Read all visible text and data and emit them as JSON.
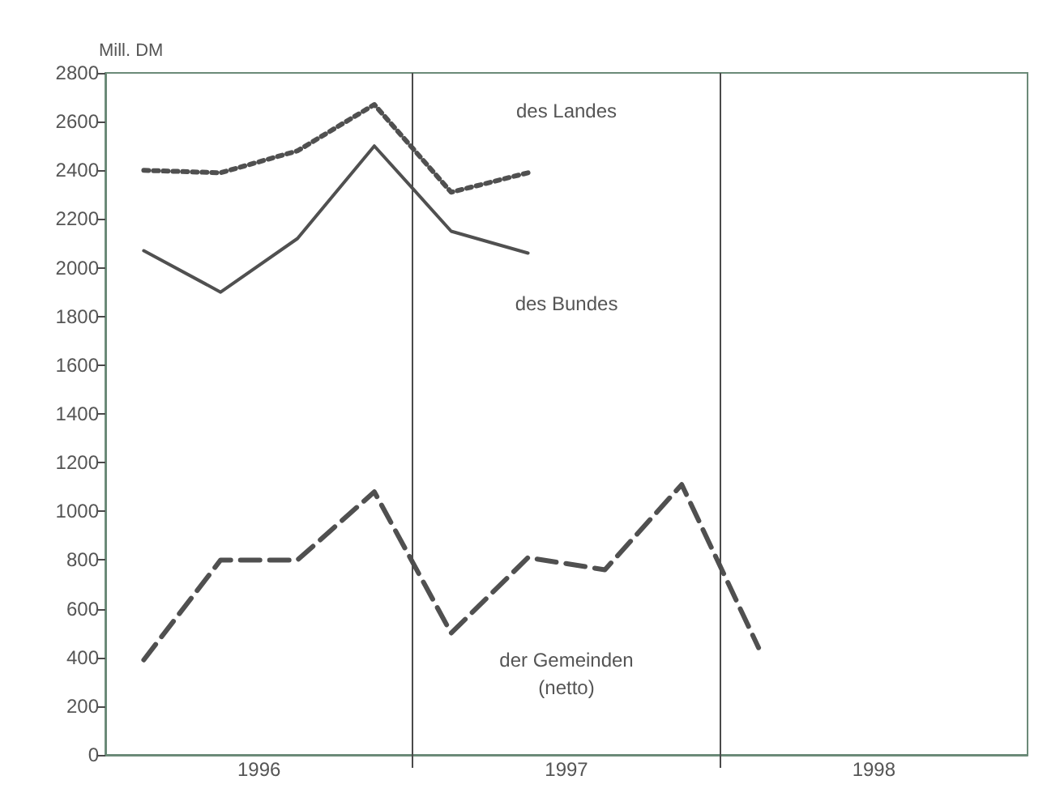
{
  "chart_data": {
    "type": "line",
    "ylabel": "Mill. DM",
    "xlim": [
      1996,
      1999
    ],
    "xticks": [
      {
        "value": 1996.5,
        "label": "1996"
      },
      {
        "value": 1997,
        "label": null
      },
      {
        "value": 1997.5,
        "label": "1997"
      },
      {
        "value": 1998,
        "label": null
      },
      {
        "value": 1998.5,
        "label": "1998"
      }
    ],
    "ylim": [
      0,
      2800
    ],
    "yticks": [
      0,
      200,
      400,
      600,
      800,
      1000,
      1200,
      1400,
      1600,
      1800,
      2000,
      2200,
      2400,
      2600,
      2800
    ],
    "grid": false,
    "legend": false,
    "marker": "none",
    "ref_lines": [
      {
        "axis": "x",
        "value": 1997,
        "color": "#4a4a4a"
      },
      {
        "axis": "x",
        "value": 1998,
        "color": "#4a4a4a"
      }
    ],
    "series": [
      {
        "name": "des Landes",
        "color": "#505050",
        "line_style": "dotted",
        "x": [
          1996.125,
          1996.375,
          1996.625,
          1996.875,
          1997.125,
          1997.375
        ],
        "values": [
          2400,
          2390,
          2480,
          2670,
          2310,
          2390
        ]
      },
      {
        "name": "des Bundes",
        "color": "#505050",
        "line_style": "solid",
        "x": [
          1996.125,
          1996.375,
          1996.625,
          1996.875,
          1997.125,
          1997.375
        ],
        "values": [
          2070,
          1900,
          2120,
          2500,
          2150,
          2060
        ]
      },
      {
        "name": "der Gemeinden (netto)",
        "color": "#505050",
        "line_style": "dashed",
        "x": [
          1996.125,
          1996.375,
          1996.625,
          1996.875,
          1997.125,
          1997.375,
          1997.625,
          1997.875,
          1998.125
        ],
        "values": [
          390,
          800,
          800,
          1080,
          500,
          810,
          760,
          1110,
          440
        ]
      }
    ]
  }
}
